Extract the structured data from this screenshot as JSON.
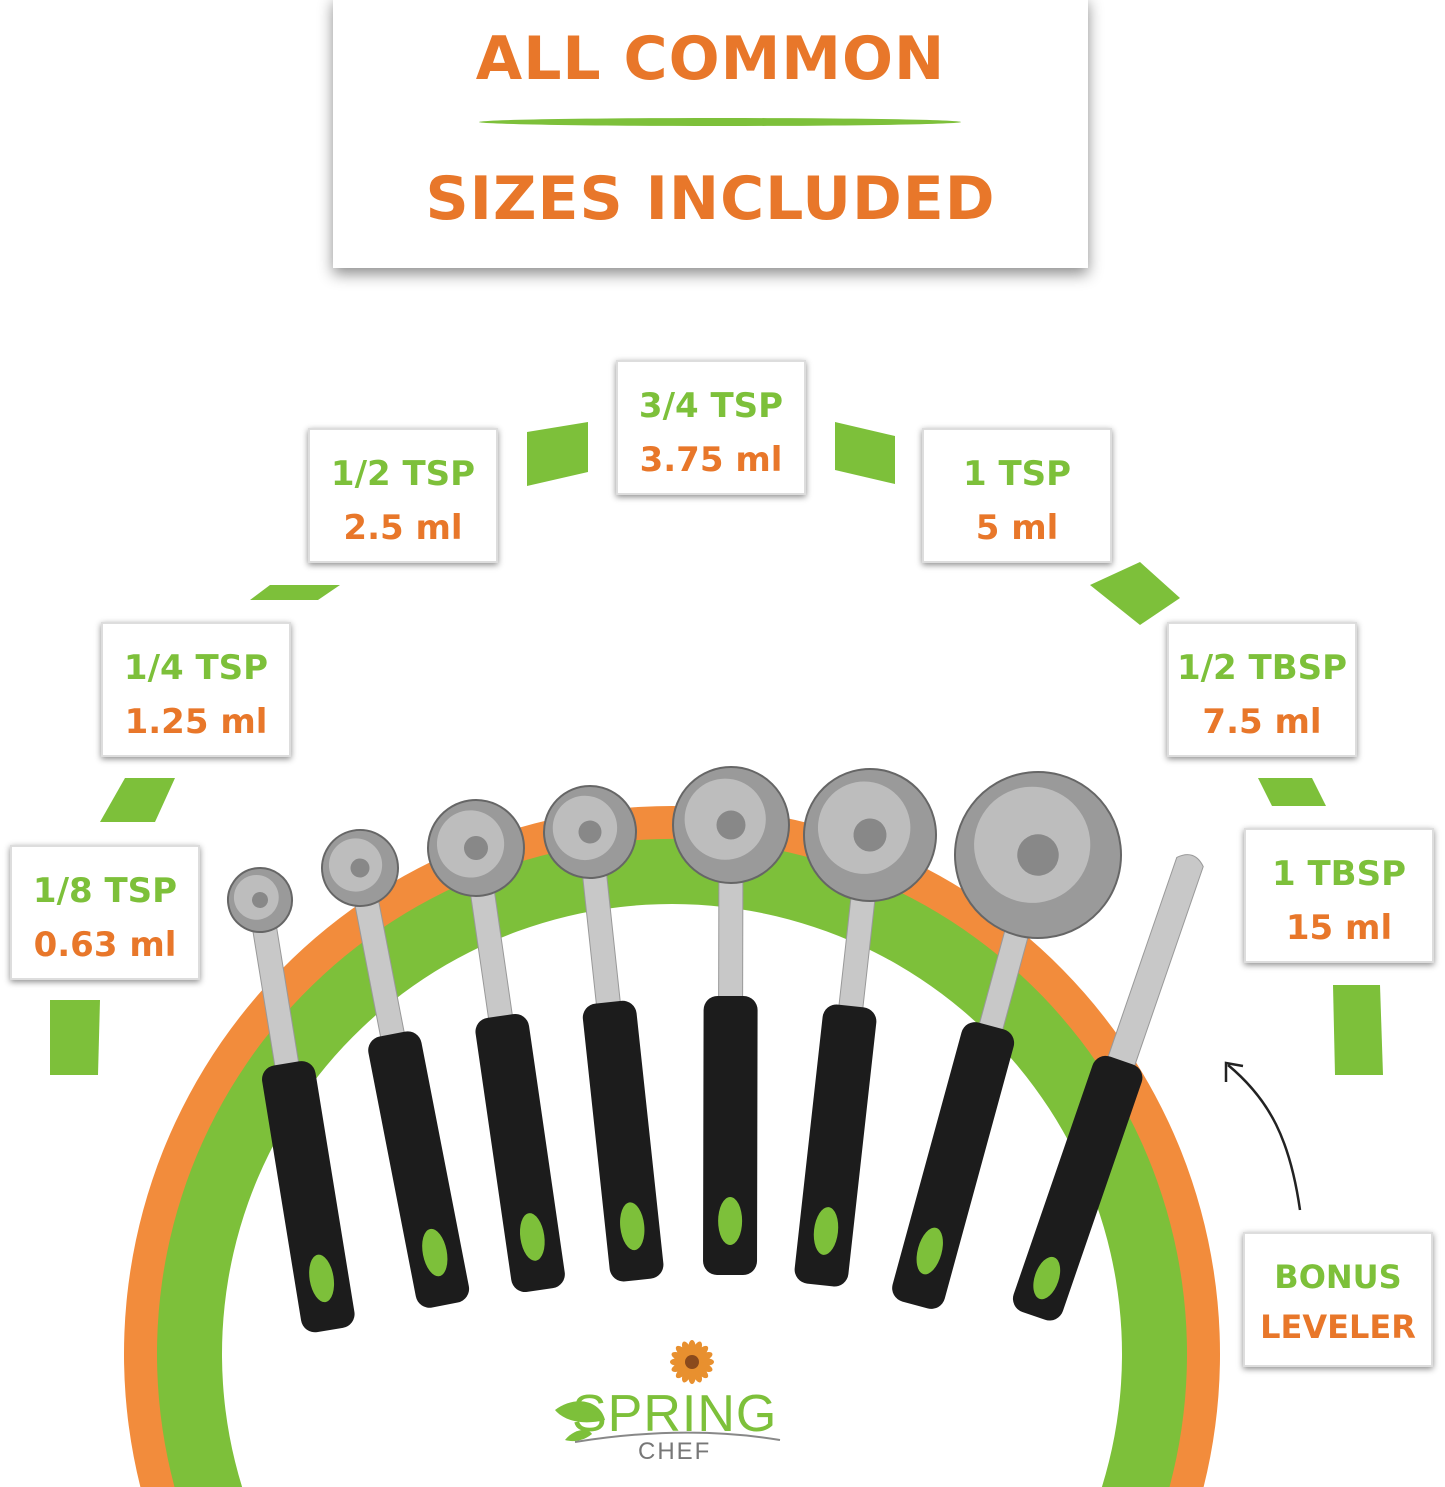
{
  "header": {
    "line1": "ALL COMMON",
    "line2": "SIZES INCLUDED"
  },
  "sizes": [
    {
      "name": "1/8 TSP",
      "volume": "0.63 ml"
    },
    {
      "name": "1/4 TSP",
      "volume": "1.25 ml"
    },
    {
      "name": "1/2 TSP",
      "volume": "2.5 ml"
    },
    {
      "name": "3/4 TSP",
      "volume": "3.75 ml"
    },
    {
      "name": "1 TSP",
      "volume": "5 ml"
    },
    {
      "name": "1/2 TBSP",
      "volume": "7.5 ml"
    },
    {
      "name": "1 TBSP",
      "volume": "15 ml"
    }
  ],
  "bonus": {
    "line1": "BONUS",
    "line2": "LEVELER"
  },
  "logo": {
    "word1": "SPRING",
    "word2": "CHEF"
  },
  "colors": {
    "green": "#7dc03a",
    "orange": "#e8772a",
    "ring_orange": "#f28c3c",
    "handle": "#1c1c1c"
  }
}
